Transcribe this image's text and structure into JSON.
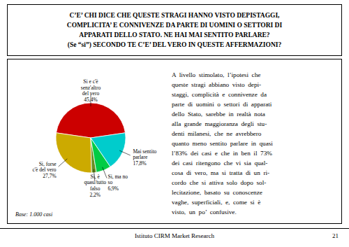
{
  "chart_data": {
    "type": "pie",
    "title": "C’E’ CHI DICE CHE QUESTE STRAGI HANNO VISTO DEPISTAGGI,\nCOMPLICITA’ E CONNIVENZE DA PARTE DI UOMINI O SETTORI DI\nAPPARATI DELLO STATO. NE HAI MAI SENTITO PARLARE?\n(Se “si”) SECONDO TE C’E’ DEL VERO IN QUESTE AFFERMAZIONI?",
    "categories": [
      "Si e c'è\nsenz'altro\ndel vero",
      "Si, forse\nc'è del vero",
      "Si, è\nquasi/tutto\nfalso",
      "Si, ma no\nso",
      "Mai sentito\nparlare"
    ],
    "values": [
      45.4,
      27.7,
      2.2,
      6.9,
      17.8
    ],
    "value_labels": [
      "45,4%",
      "27,7%",
      "2,2%",
      "6,9%",
      "17,8%"
    ],
    "data_labels": true,
    "colors": [
      "#cc0000",
      "#ccaa00",
      "#6b8e23",
      "#00cc44",
      "#00cccc"
    ],
    "annotations": [
      "Base: 1.000 casi",
      "A  livello  stimolato,  l’ipotesi  che\nqueste  stragi  abbiano  visto  depi-\nstaggi,  complicità  e  connivenze  da\nparte  di  uomini  o  settori  di  apparati\ndello  Stato,  sarebbe  in  realtà  nota\nalla  grande  maggioranza  degli  stu-\ndenti  milanesi,  che  ne  avrebbero\nquanto  meno  sentito  parlare  in  quasi\nl’83%  dei  casi  e  che  in  ben  il  73%\ndei  casi  ritengono  che  vi  sia  qual-\ncosa  di  vero,  ma  si  tratta  di  un  ri-\ncordo  che  si  attiva  solo  dopo  sol-\nlecitazione,  basato  su  conoscenze\nvaghe,  superficiali,  e,  come  si  è\nvisto,  un  po’  confusive.",
      "Istituto CIRM Market Research",
      "21"
    ]
  }
}
